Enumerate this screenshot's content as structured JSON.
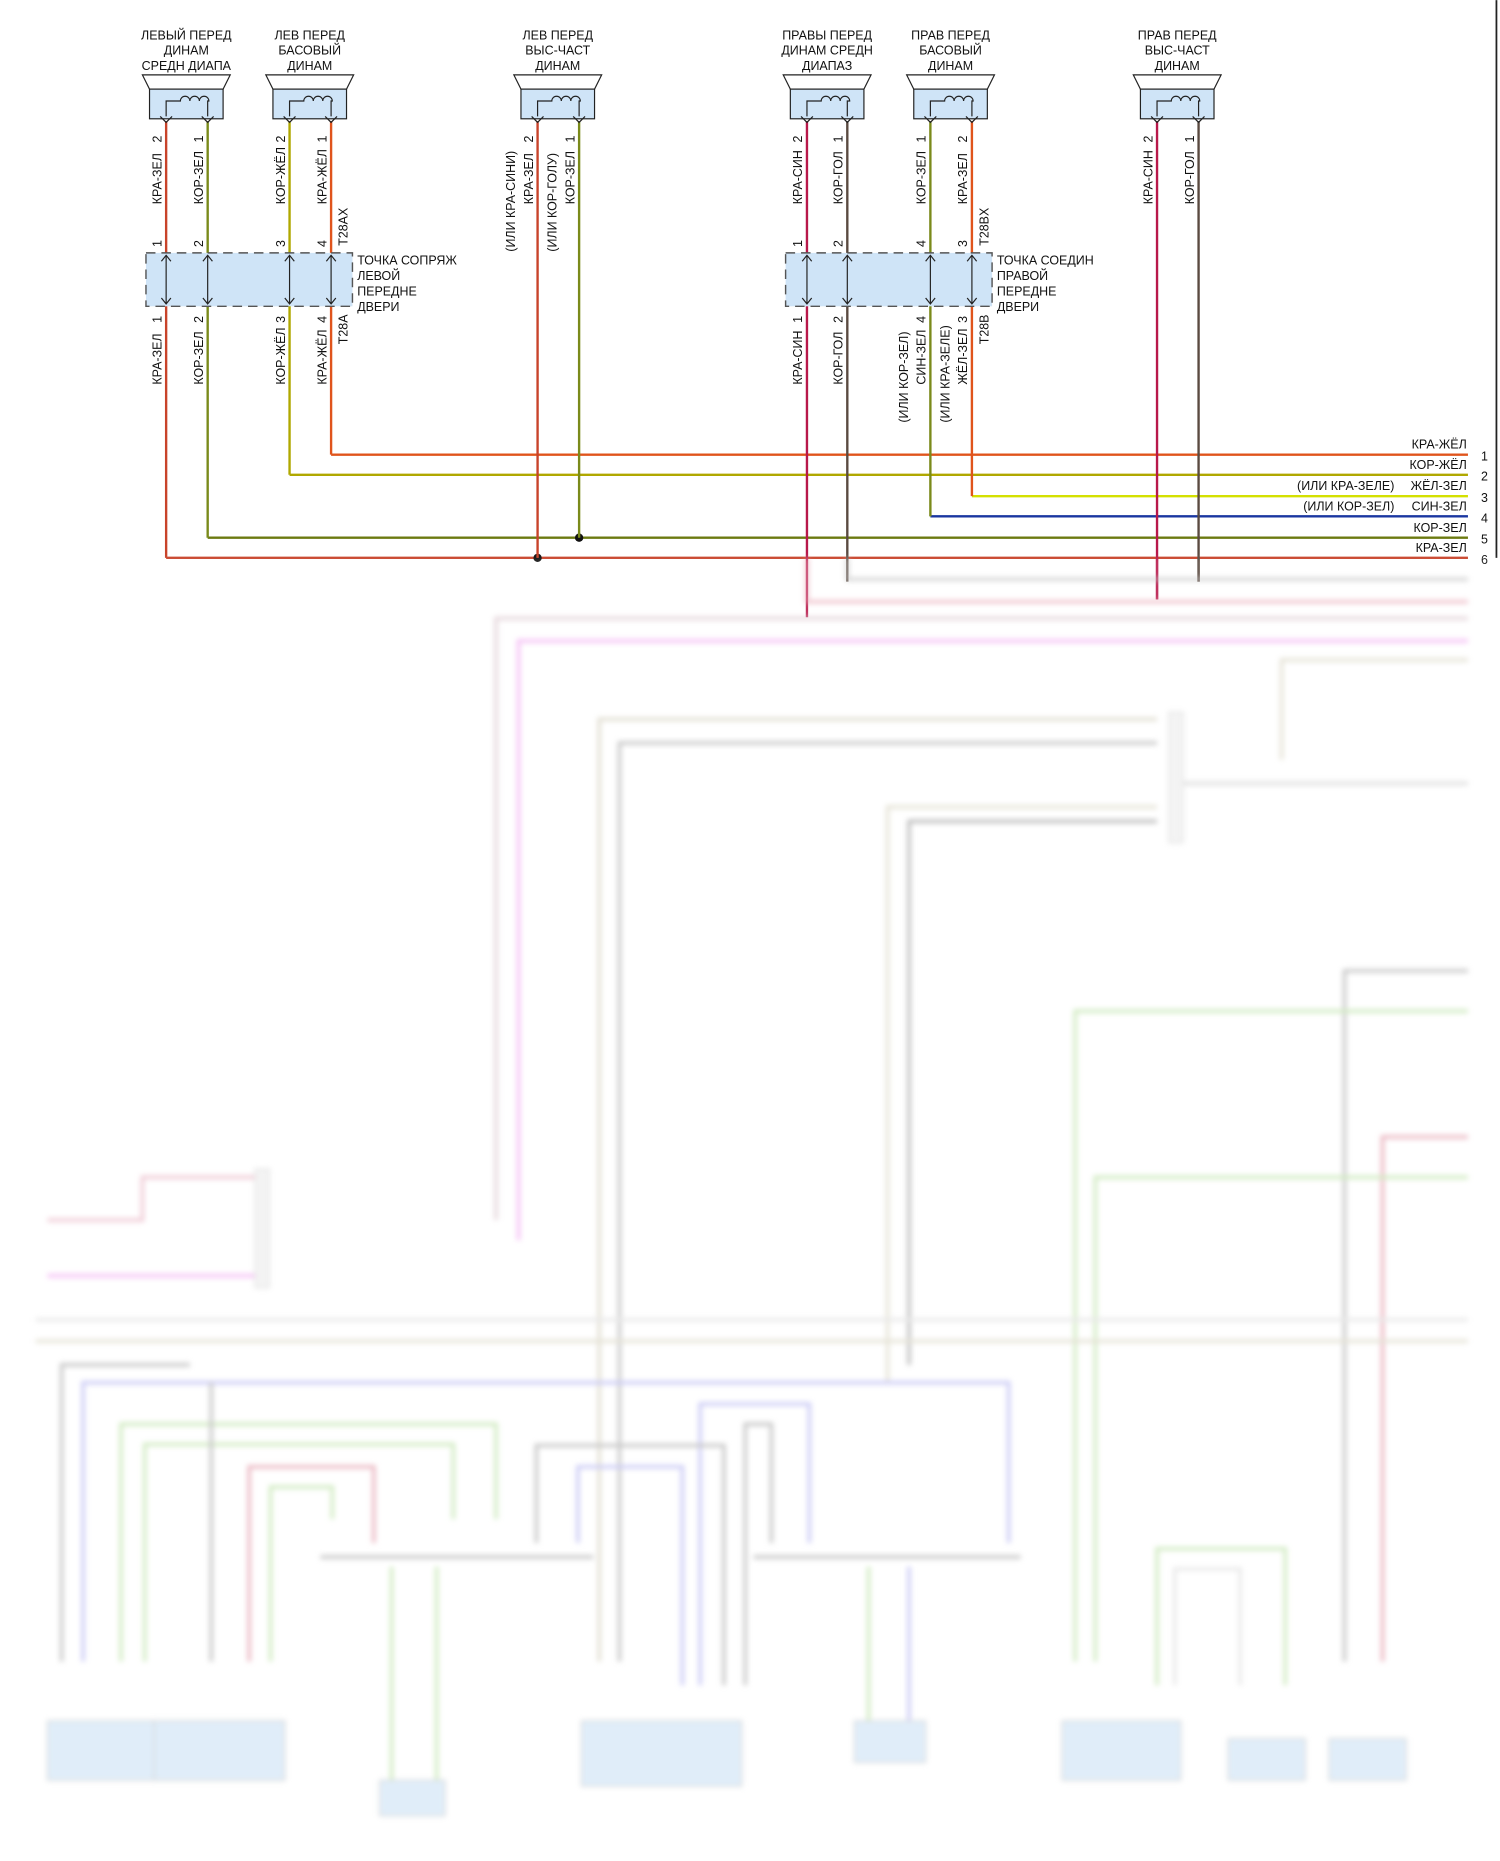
{
  "speakers": [
    {
      "id": "left-mid",
      "title": [
        "ЛЕВЫЙ ПЕРЕД",
        "ДИНАМ",
        "СРЕДН ДИАПА"
      ],
      "pins": [
        {
          "num": "2",
          "wire": "КРА-ЗЕЛ",
          "alt": "",
          "color": "#c8432a"
        },
        {
          "num": "1",
          "wire": "КОР-ЗЕЛ",
          "alt": "",
          "color": "#7a8a1a"
        }
      ]
    },
    {
      "id": "left-bass",
      "title": [
        "ЛЕВ ПЕРЕД",
        "БАСОВЫЙ",
        "ДИНАМ"
      ],
      "pins": [
        {
          "num": "2",
          "wire": "КОР-ЖЁЛ",
          "alt": "",
          "color": "#b0a800"
        },
        {
          "num": "1",
          "wire": "КРА-ЖЁЛ",
          "alt": "",
          "color": "#e0541c"
        }
      ],
      "tag": "T28AX"
    },
    {
      "id": "left-tweeter",
      "title": [
        "ЛЕВ ПЕРЕД",
        "ВЫС-ЧАСТ",
        "ДИНАМ"
      ],
      "pins": [
        {
          "num": "2",
          "wire": "КРА-ЗЕЛ",
          "alt": "(ИЛИ КРА-СИНИ)",
          "color": "#c8432a"
        },
        {
          "num": "1",
          "wire": "КОР-ЗЕЛ",
          "alt": "(ИЛИ КОР-ГОЛУ)",
          "color": "#7a8a1a"
        }
      ]
    },
    {
      "id": "right-mid",
      "title": [
        "ПРАВЫ ПЕРЕД",
        "ДИНАМ СРЕДН",
        "ДИАПАЗ"
      ],
      "pins": [
        {
          "num": "2",
          "wire": "КРА-СИН",
          "alt": "",
          "color": "#b8184a"
        },
        {
          "num": "1",
          "wire": "КОР-ГОЛ",
          "alt": "",
          "color": "#5a4a40"
        }
      ]
    },
    {
      "id": "right-bass",
      "title": [
        "ПРАВ ПЕРЕД",
        "БАСОВЫЙ",
        "ДИНАМ"
      ],
      "pins": [
        {
          "num": "1",
          "wire": "КОР-ЗЕЛ",
          "alt": "",
          "color": "#7a8a1a"
        },
        {
          "num": "2",
          "wire": "КРА-ЗЕЛ",
          "alt": "",
          "color": "#e0541c"
        }
      ],
      "tag": "T28BX"
    },
    {
      "id": "right-tweeter",
      "title": [
        "ПРАВ ПЕРЕД",
        "ВЫС-ЧАСТ",
        "ДИНАМ"
      ],
      "pins": [
        {
          "num": "2",
          "wire": "КРА-СИН",
          "alt": "",
          "color": "#b8184a"
        },
        {
          "num": "1",
          "wire": "КОР-ГОЛ",
          "alt": "",
          "color": "#5a4a40"
        }
      ]
    }
  ],
  "connectors": [
    {
      "id": "left-door",
      "label": [
        "ТОЧКА СОПРЯЖ",
        "ЛЕВОЙ",
        "ПЕРЕДНЕ",
        "ДВЕРИ"
      ],
      "tag": "T28A",
      "top_pins": [
        {
          "num": "1",
          "wire": ""
        },
        {
          "num": "2",
          "wire": ""
        },
        {
          "num": "3",
          "wire": ""
        },
        {
          "num": "4",
          "wire": ""
        }
      ],
      "bottom_pins": [
        {
          "num": "1",
          "wire": "КРА-ЗЕЛ",
          "alt": "",
          "color": "#c8432a"
        },
        {
          "num": "2",
          "wire": "КОР-ЗЕЛ",
          "alt": "",
          "color": "#7a8a1a"
        },
        {
          "num": "3",
          "wire": "КОР-ЖЁЛ",
          "alt": "",
          "color": "#b0a800"
        },
        {
          "num": "4",
          "wire": "КРА-ЖЁЛ",
          "alt": "",
          "color": "#e0541c"
        }
      ]
    },
    {
      "id": "right-door",
      "label": [
        "ТОЧКА СОЕДИН",
        "ПРАВОЙ",
        "ПЕРЕДНЕ",
        "ДВЕРИ"
      ],
      "tag": "T28B",
      "top_pins": [
        {
          "num": "1"
        },
        {
          "num": "2"
        },
        {
          "num": "4"
        },
        {
          "num": "3"
        }
      ],
      "bottom_pins": [
        {
          "num": "1",
          "wire": "КРА-СИН",
          "alt": "",
          "color": "#b8184a"
        },
        {
          "num": "2",
          "wire": "КОР-ГОЛ",
          "alt": "",
          "color": "#5a4a40"
        },
        {
          "num": "4",
          "wire": "СИН-ЗЕЛ",
          "alt": "(ИЛИ КОР-ЗЕЛ)",
          "color": "#1a36a0"
        },
        {
          "num": "3",
          "wire": "ЖЁЛ-ЗЕЛ",
          "alt": "(ИЛИ КРА-ЗЕЛЕ)",
          "color": "#d4e000"
        }
      ]
    }
  ],
  "harness": [
    {
      "num": "1",
      "wire": "КРА-ЖЁЛ",
      "alt": "",
      "color": "#e0541c"
    },
    {
      "num": "2",
      "wire": "КОР-ЖЁЛ",
      "alt": "",
      "color": "#b0a800"
    },
    {
      "num": "3",
      "wire": "ЖЁЛ-ЗЕЛ",
      "alt": "(ИЛИ КРА-ЗЕЛЕ)",
      "color": "#d4e000"
    },
    {
      "num": "4",
      "wire": "СИН-ЗЕЛ",
      "alt": "(ИЛИ КОР-ЗЕЛ)",
      "color": "#1a36a0"
    },
    {
      "num": "5",
      "wire": "КОР-ЗЕЛ",
      "alt": "",
      "color": "#6b7a10"
    },
    {
      "num": "6",
      "wire": "КРА-ЗЕЛ",
      "alt": "",
      "color": "#c8432a"
    }
  ],
  "colors": {
    "component_fill": "#cfe4f7",
    "border": "#222222"
  }
}
